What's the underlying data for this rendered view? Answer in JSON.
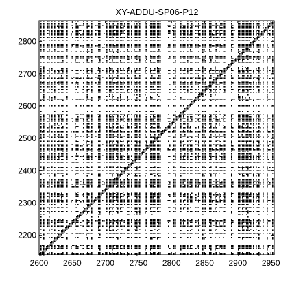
{
  "chart_data": {
    "type": "scatter",
    "title": "XY-ADDU-SP06-P12",
    "xlabel": "",
    "ylabel": "",
    "xlim": [
      2600,
      2955
    ],
    "ylim": [
      2140,
      2865
    ],
    "x_ticks": [
      "2600",
      "2650",
      "2700",
      "2750",
      "2800",
      "2850",
      "2900",
      "2950"
    ],
    "y_ticks": [
      "2200",
      "2300",
      "2400",
      "2500",
      "2600",
      "2700",
      "2800"
    ],
    "x_tick_values": [
      2600,
      2650,
      2700,
      2750,
      2800,
      2850,
      2900,
      2950
    ],
    "y_tick_values": [
      2200,
      2300,
      2400,
      2500,
      2600,
      2700,
      2800
    ],
    "grid": false,
    "legend": "none",
    "marker_color": "#000000",
    "background_color": "#ffffff",
    "recurrence_plot": true,
    "series": [
      {
        "values": "dense black recurrence point pattern — individual points not legible at this resolution"
      }
    ]
  }
}
